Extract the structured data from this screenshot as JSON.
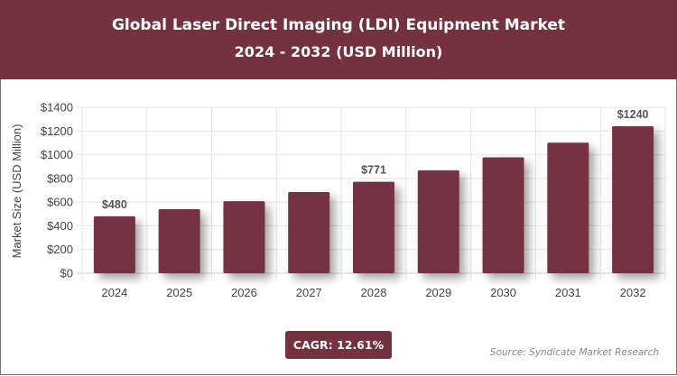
{
  "header": {
    "title": "Global Laser Direct Imaging (LDI) Equipment Market",
    "subtitle": "2024 - 2032 (USD Million)"
  },
  "chart_data": {
    "type": "bar",
    "title": "Global Laser Direct Imaging (LDI) Equipment Market",
    "subtitle": "2024 - 2032 (USD Million)",
    "categories": [
      "2024",
      "2025",
      "2026",
      "2027",
      "2028",
      "2029",
      "2030",
      "2031",
      "2032"
    ],
    "values": [
      480,
      540,
      608,
      685,
      771,
      868,
      978,
      1101,
      1240
    ],
    "data_labels": {
      "0": "$480",
      "4": "$771",
      "8": "$1240"
    },
    "xlabel": "",
    "ylabel": "Market Size (USD Million)",
    "ylim": [
      0,
      1400
    ],
    "yticks": [
      "$0",
      "$200",
      "$400",
      "$600",
      "$800",
      "$1000",
      "$1200",
      "$1400"
    ],
    "grid": true,
    "bar_color": "#74323f"
  },
  "footer": {
    "cagr": "CAGR: 12.61%",
    "source": "Source: Syndicate Market Research"
  }
}
